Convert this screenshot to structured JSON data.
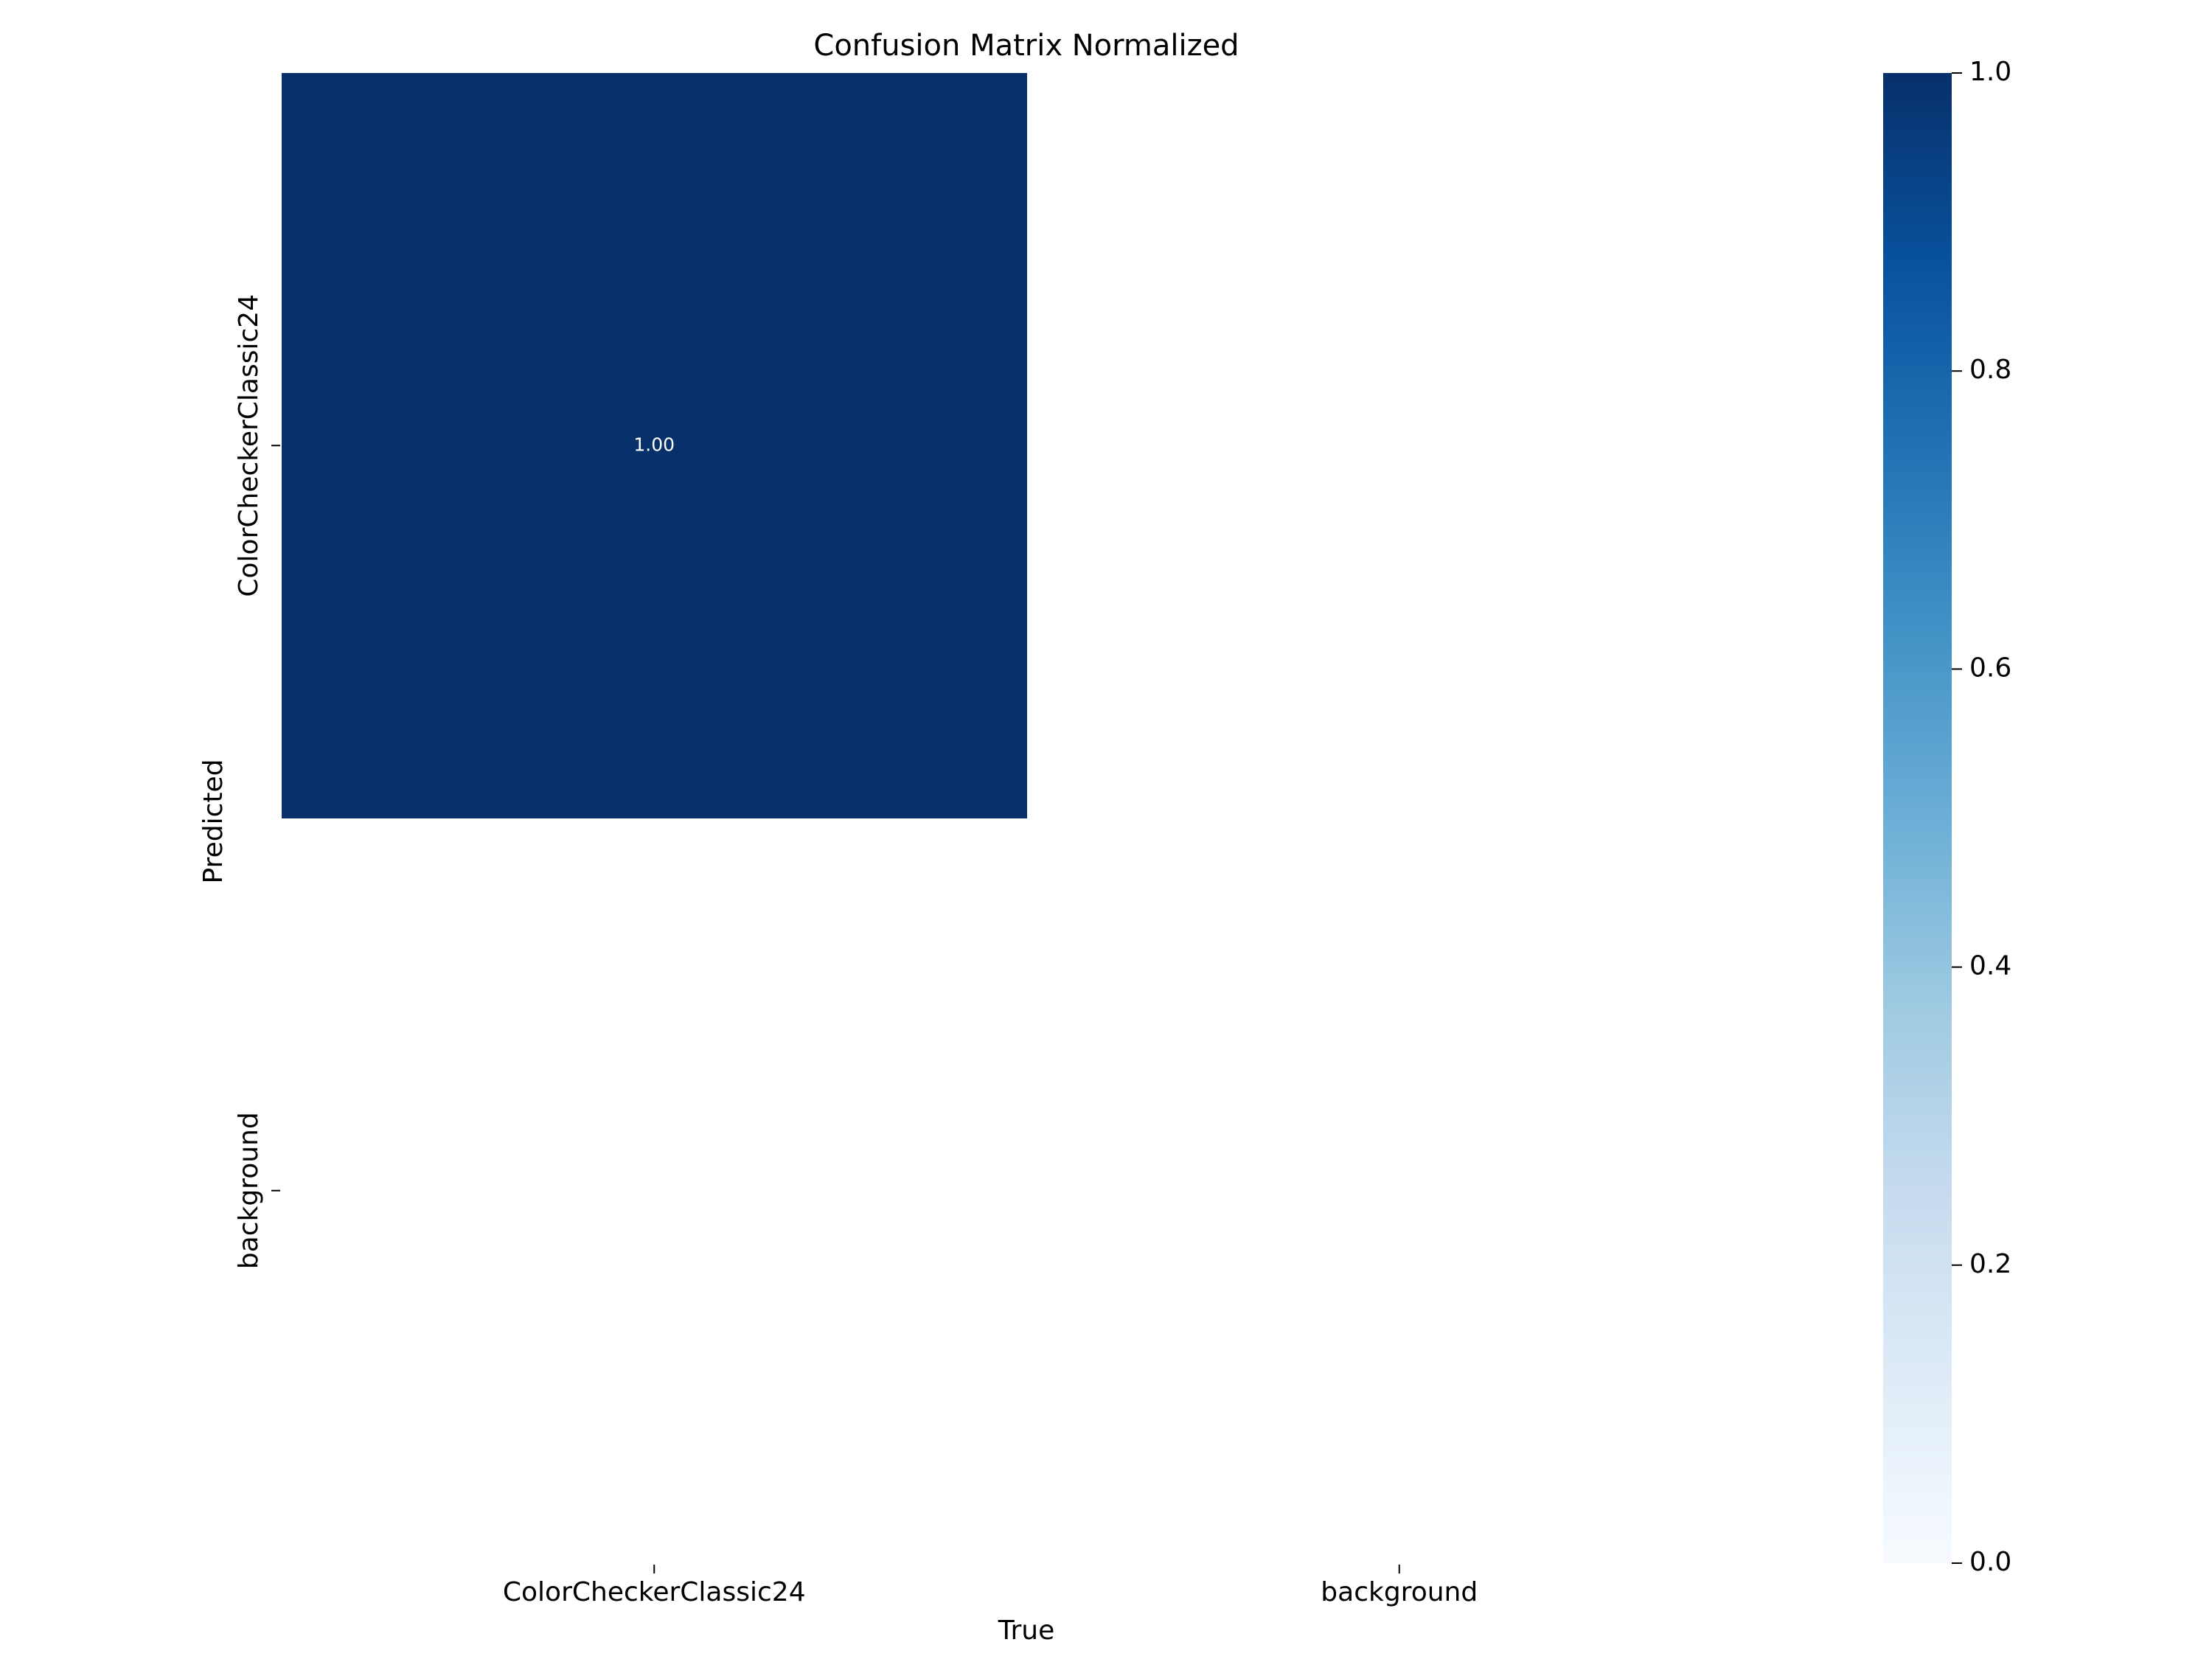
{
  "chart_data": {
    "type": "heatmap",
    "title": "Confusion Matrix Normalized",
    "x_label": "True",
    "y_label": "Predicted",
    "x_categories": [
      "ColorCheckerClassic24",
      "background"
    ],
    "y_categories": [
      "ColorCheckerClassic24",
      "background"
    ],
    "values": [
      [
        1,
        null
      ],
      [
        null,
        null
      ]
    ],
    "value_labels": [
      [
        "1.00",
        null
      ],
      [
        null,
        null
      ]
    ],
    "colormap": "Blues",
    "clim": [
      0,
      1
    ],
    "cticks": [
      {
        "value": 0,
        "label": "0.0"
      },
      0.2,
      0.4,
      0.6,
      0.8,
      {
        "value": 1,
        "label": "1.0"
      }
    ]
  }
}
